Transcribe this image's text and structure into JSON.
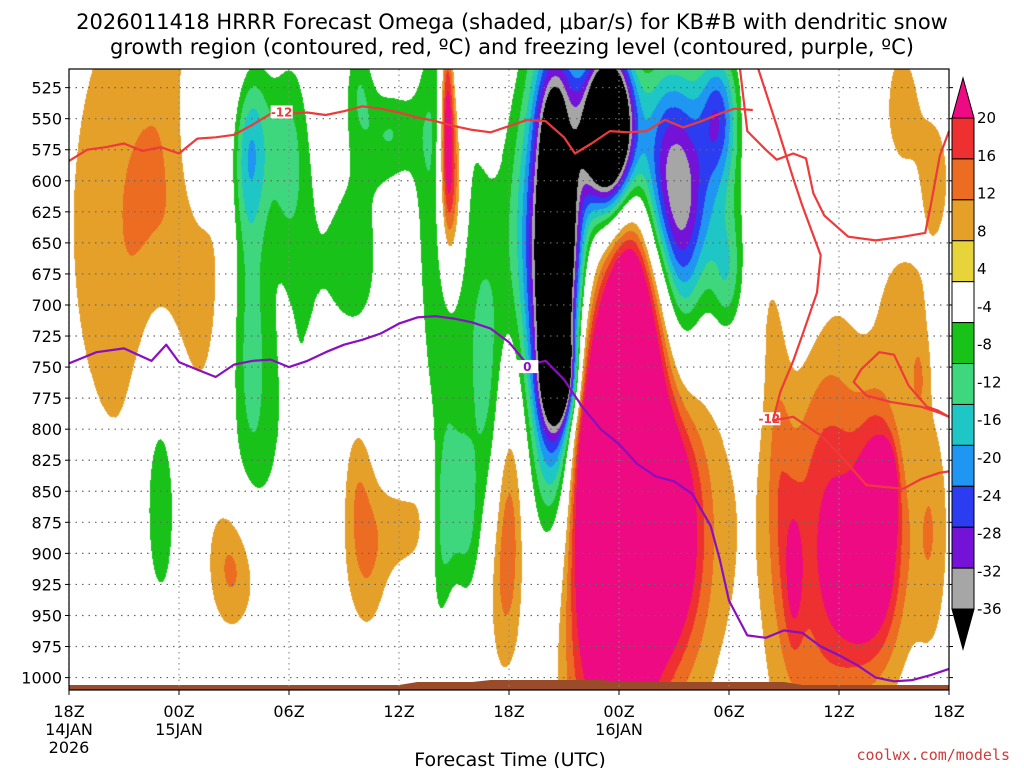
{
  "chart_data": {
    "type": "heatmap",
    "title_line1": "2026011418 HRRR Forecast Omega (shaded, μbar/s) for KB#B with dendritic snow",
    "title_line2": "growth region (contoured, red, ºC) and freezing level (contoured, purple, ºC)",
    "xlabel": "Forecast Time (UTC)",
    "credit": "coolwx.com/models",
    "x_range_hours": [
      0,
      48
    ],
    "y_range_mb": [
      510,
      1010
    ],
    "x_ticks": [
      {
        "hour": 0,
        "l1": "18Z",
        "l2": "14JAN",
        "l3": "2026"
      },
      {
        "hour": 6,
        "l1": "00Z",
        "l2": "15JAN",
        "l3": ""
      },
      {
        "hour": 12,
        "l1": "06Z",
        "l2": "",
        "l3": ""
      },
      {
        "hour": 18,
        "l1": "12Z",
        "l2": "",
        "l3": ""
      },
      {
        "hour": 24,
        "l1": "18Z",
        "l2": "",
        "l3": ""
      },
      {
        "hour": 30,
        "l1": "00Z",
        "l2": "16JAN",
        "l3": ""
      },
      {
        "hour": 36,
        "l1": "06Z",
        "l2": "",
        "l3": ""
      },
      {
        "hour": 42,
        "l1": "12Z",
        "l2": "",
        "l3": ""
      },
      {
        "hour": 48,
        "l1": "18Z",
        "l2": "",
        "l3": ""
      }
    ],
    "y_ticks": [
      "525",
      "550",
      "575",
      "600",
      "625",
      "650",
      "675",
      "700",
      "725",
      "750",
      "775",
      "800",
      "825",
      "850",
      "875",
      "900",
      "925",
      "950",
      "975",
      "1000"
    ],
    "colorbar": {
      "labels": [
        "20",
        "16",
        "12",
        "8",
        "4",
        "-4",
        "-8",
        "-12",
        "-16",
        "-20",
        "-24",
        "-28",
        "-32",
        "-36"
      ],
      "colors": [
        "#ee0a82",
        "#ee3030",
        "#ec6c22",
        "#e5a02a",
        "#e6d43a",
        "#ffffff",
        "#19c219",
        "#3fd77d",
        "#1ec6c6",
        "#1f96f2",
        "#2c3cf0",
        "#7412d8",
        "#a6a6a6",
        "#000000"
      ],
      "bin_edges": [
        -40,
        -36,
        -32,
        -28,
        -24,
        -20,
        -16,
        -12,
        -8,
        -4,
        4,
        8,
        12,
        16,
        20,
        24
      ]
    },
    "omega_blobs": [
      {
        "t": 5.1,
        "p": 635,
        "st": 3.6,
        "sp": 150,
        "a": 10
      },
      {
        "t": 4.9,
        "p": 840,
        "st": 0.9,
        "sp": 90,
        "a": -12
      },
      {
        "t": 9.6,
        "p": 580,
        "st": 0.7,
        "sp": 50,
        "a": -11
      },
      {
        "t": 10.2,
        "p": 560,
        "st": 0.8,
        "sp": 55,
        "a": -11
      },
      {
        "t": 7.2,
        "p": 560,
        "st": 0.9,
        "sp": 60,
        "a": -11
      },
      {
        "t": 8.0,
        "p": 740,
        "st": 1.6,
        "sp": 240,
        "a": 10
      },
      {
        "t": 8.1,
        "p": 810,
        "st": 2.0,
        "sp": 200,
        "a": -12
      },
      {
        "t": 9.7,
        "p": 700,
        "st": 0.9,
        "sp": 80,
        "a": -9
      },
      {
        "t": 10.0,
        "p": 800,
        "st": 1.0,
        "sp": 120,
        "a": -7
      },
      {
        "t": 9.8,
        "p": 930,
        "st": 1.3,
        "sp": 45,
        "a": 6
      },
      {
        "t": 8.9,
        "p": 905,
        "st": 1.0,
        "sp": 40,
        "a": 9
      },
      {
        "t": 11.9,
        "p": 580,
        "st": 0.7,
        "sp": 55,
        "a": -9
      },
      {
        "t": 12.6,
        "p": 760,
        "st": 1.1,
        "sp": 280,
        "a": -7
      },
      {
        "t": 13.0,
        "p": 930,
        "st": 0.9,
        "sp": 50,
        "a": 9
      },
      {
        "t": 15.6,
        "p": 660,
        "st": 1.5,
        "sp": 75,
        "a": -10
      },
      {
        "t": 17.6,
        "p": 560,
        "st": 1.1,
        "sp": 30,
        "a": -10
      },
      {
        "t": 18.4,
        "p": 880,
        "st": 1.3,
        "sp": 30,
        "a": 6
      },
      {
        "t": 15.7,
        "p": 835,
        "st": 0.6,
        "sp": 45,
        "a": 6
      },
      {
        "t": 16.2,
        "p": 905,
        "st": 0.8,
        "sp": 45,
        "a": 7
      },
      {
        "t": 15.8,
        "p": 520,
        "st": 0.6,
        "sp": 35,
        "a": -9
      },
      {
        "t": 20.2,
        "p": 775,
        "st": 1.0,
        "sp": 200,
        "a": -10
      },
      {
        "t": 19.5,
        "p": 860,
        "st": 0.6,
        "sp": 60,
        "a": 7
      },
      {
        "t": 20.9,
        "p": 880,
        "st": 0.9,
        "sp": 45,
        "a": -14
      },
      {
        "t": 20.1,
        "p": 560,
        "st": 0.9,
        "sp": 90,
        "a": -8
      },
      {
        "t": 20.8,
        "p": 600,
        "st": 0.5,
        "sp": 60,
        "a": 24
      },
      {
        "t": 21.0,
        "p": 900,
        "st": 0.5,
        "sp": 60,
        "a": 8
      },
      {
        "t": 20.6,
        "p": 540,
        "st": 0.25,
        "sp": 55,
        "a": 18
      },
      {
        "t": 22.0,
        "p": 710,
        "st": 1.0,
        "sp": 170,
        "a": -9
      },
      {
        "t": 23.0,
        "p": 780,
        "st": 0.6,
        "sp": 90,
        "a": -8
      },
      {
        "t": 24.0,
        "p": 840,
        "st": 0.7,
        "sp": 80,
        "a": 10
      },
      {
        "t": 23.5,
        "p": 920,
        "st": 0.8,
        "sp": 60,
        "a": 7
      },
      {
        "t": 24.6,
        "p": 660,
        "st": 1.0,
        "sp": 110,
        "a": -9
      },
      {
        "t": 26.2,
        "p": 690,
        "st": 1.5,
        "sp": 240,
        "a": -11
      },
      {
        "t": 26.6,
        "p": 675,
        "st": 0.9,
        "sp": 115,
        "a": -58
      },
      {
        "t": 26.7,
        "p": 755,
        "st": 0.6,
        "sp": 25,
        "a": -28
      },
      {
        "t": 26.4,
        "p": 555,
        "st": 0.6,
        "sp": 30,
        "a": -8
      },
      {
        "t": 27.1,
        "p": 575,
        "st": 0.3,
        "sp": 25,
        "a": 6
      },
      {
        "t": 28.0,
        "p": 860,
        "st": 1.6,
        "sp": 210,
        "a": 12
      },
      {
        "t": 29.2,
        "p": 880,
        "st": 1.3,
        "sp": 90,
        "a": 17
      },
      {
        "t": 28.3,
        "p": 810,
        "st": 0.9,
        "sp": 55,
        "a": 9
      },
      {
        "t": 30.8,
        "p": 815,
        "st": 1.4,
        "sp": 150,
        "a": 22
      },
      {
        "t": 30.6,
        "p": 700,
        "st": 0.9,
        "sp": 80,
        "a": 16
      },
      {
        "t": 31.1,
        "p": 895,
        "st": 0.6,
        "sp": 80,
        "a": 10
      },
      {
        "t": 32.5,
        "p": 880,
        "st": 1.2,
        "sp": 60,
        "a": 18
      },
      {
        "t": 31.0,
        "p": 745,
        "st": 4.8,
        "sp": 210,
        "a": 6
      },
      {
        "t": 32.9,
        "p": 905,
        "st": 1.8,
        "sp": 80,
        "a": 7
      },
      {
        "t": 29.4,
        "p": 555,
        "st": 1.0,
        "sp": 45,
        "a": -70
      },
      {
        "t": 29.7,
        "p": 620,
        "st": 2.7,
        "sp": 60,
        "a": -11
      },
      {
        "t": 30.8,
        "p": 920,
        "st": 0.35,
        "sp": 60,
        "a": -16
      },
      {
        "t": 32.3,
        "p": 570,
        "st": 1.0,
        "sp": 60,
        "a": -12
      },
      {
        "t": 33.4,
        "p": 610,
        "st": 1.3,
        "sp": 60,
        "a": -14
      },
      {
        "t": 34.0,
        "p": 590,
        "st": 2.3,
        "sp": 100,
        "a": -9
      },
      {
        "t": 35.4,
        "p": 545,
        "st": 0.7,
        "sp": 35,
        "a": -16
      },
      {
        "t": 33.4,
        "p": 680,
        "st": 0.7,
        "sp": 70,
        "a": -8
      },
      {
        "t": 35.9,
        "p": 680,
        "st": 0.6,
        "sp": 35,
        "a": -9
      },
      {
        "t": 37.5,
        "p": 570,
        "st": 0.7,
        "sp": 60,
        "a": 6
      },
      {
        "t": 38.3,
        "p": 685,
        "st": 0.7,
        "sp": 50,
        "a": 6
      },
      {
        "t": 38.7,
        "p": 845,
        "st": 0.5,
        "sp": 80,
        "a": 6
      },
      {
        "t": 39.8,
        "p": 845,
        "st": 1.6,
        "sp": 200,
        "a": 5
      },
      {
        "t": 39.5,
        "p": 920,
        "st": 0.4,
        "sp": 45,
        "a": 9
      },
      {
        "t": 39.8,
        "p": 620,
        "st": 1.4,
        "sp": 120,
        "a": -9
      },
      {
        "t": 41.2,
        "p": 860,
        "st": 1.3,
        "sp": 150,
        "a": 7
      },
      {
        "t": 43.0,
        "p": 880,
        "st": 1.8,
        "sp": 80,
        "a": 9
      },
      {
        "t": 44.2,
        "p": 860,
        "st": 0.8,
        "sp": 55,
        "a": 15
      },
      {
        "t": 44.6,
        "p": 850,
        "st": 0.3,
        "sp": 20,
        "a": 22
      },
      {
        "t": 43.2,
        "p": 930,
        "st": 1.2,
        "sp": 45,
        "a": 7
      },
      {
        "t": 47.0,
        "p": 880,
        "st": 0.7,
        "sp": 70,
        "a": 7
      },
      {
        "t": 45.4,
        "p": 540,
        "st": 1.0,
        "sp": 55,
        "a": 5
      },
      {
        "t": 47.3,
        "p": 600,
        "st": 0.7,
        "sp": 45,
        "a": 5
      },
      {
        "t": 45.5,
        "p": 700,
        "st": 1.2,
        "sp": 40,
        "a": 5
      },
      {
        "t": 46.3,
        "p": 760,
        "st": 0.4,
        "sp": 25,
        "a": 6
      },
      {
        "t": 43.8,
        "p": 930,
        "st": 1.5,
        "sp": 70,
        "a": 5
      },
      {
        "t": 35.5,
        "p": 610,
        "st": 3.0,
        "sp": 90,
        "a": -6
      }
    ],
    "contours": [
      {
        "name": "dgz-minus12-upper",
        "color": "#ee3a3a",
        "label": "-12",
        "label_at": [
          11.6,
          545
        ],
        "points": [
          [
            0,
            584
          ],
          [
            1,
            575
          ],
          [
            2,
            573
          ],
          [
            3,
            570
          ],
          [
            4,
            576
          ],
          [
            5,
            573
          ],
          [
            6,
            578
          ],
          [
            7,
            566
          ],
          [
            8,
            565
          ],
          [
            9,
            563
          ],
          [
            10,
            555
          ],
          [
            11,
            546
          ],
          [
            12,
            546
          ],
          [
            13,
            545
          ],
          [
            14,
            547
          ],
          [
            15,
            544
          ],
          [
            16,
            540
          ],
          [
            17,
            542
          ],
          [
            18,
            545
          ],
          [
            19,
            549
          ],
          [
            20,
            552
          ],
          [
            21,
            556
          ],
          [
            22,
            559
          ],
          [
            23,
            561
          ],
          [
            24,
            556
          ],
          [
            25,
            551
          ],
          [
            26,
            552
          ],
          [
            27,
            565
          ],
          [
            27.6,
            578
          ],
          [
            28.5,
            570
          ],
          [
            29.5,
            560
          ],
          [
            30.5,
            561
          ],
          [
            31.5,
            560
          ],
          [
            32.5,
            551
          ],
          [
            33.5,
            557
          ],
          [
            34.5,
            552
          ],
          [
            35.5,
            546
          ],
          [
            36.3,
            542
          ],
          [
            37.3,
            543
          ]
        ]
      },
      {
        "name": "dgz-minus12-lower",
        "color": "#ee3a3a",
        "label": "-12",
        "label_at": [
          38.2,
          792
        ],
        "points": [
          [
            36.6,
            510
          ],
          [
            37.0,
            560
          ],
          [
            38.0,
            575
          ],
          [
            38.6,
            583
          ],
          [
            39.5,
            578
          ],
          [
            40.2,
            582
          ],
          [
            40.6,
            610
          ],
          [
            41.2,
            628
          ],
          [
            42.5,
            645
          ],
          [
            44.0,
            648
          ],
          [
            45.5,
            645
          ],
          [
            46.7,
            642
          ],
          [
            47.0,
            620
          ],
          [
            47.5,
            580
          ],
          [
            48,
            560
          ]
        ]
      },
      {
        "name": "dgz-minus12-mid",
        "color": "#ee3a3a",
        "label": "",
        "label_at": null,
        "points": [
          [
            37.6,
            510
          ],
          [
            38.7,
            560
          ],
          [
            39.5,
            598
          ],
          [
            40.0,
            620
          ],
          [
            40.5,
            640
          ],
          [
            41.0,
            660
          ],
          [
            40.8,
            690
          ],
          [
            40.1,
            720
          ],
          [
            39.5,
            745
          ],
          [
            38.8,
            770
          ],
          [
            38.4,
            793
          ],
          [
            39.5,
            790
          ],
          [
            41.0,
            805
          ],
          [
            42.0,
            820
          ],
          [
            43.5,
            845
          ],
          [
            45.5,
            848
          ],
          [
            46.5,
            840
          ],
          [
            47.5,
            835
          ],
          [
            48,
            834
          ]
        ]
      },
      {
        "name": "dgz-minus12-loop",
        "color": "#ee3a3a",
        "label": "",
        "label_at": null,
        "points": [
          [
            48,
            790
          ],
          [
            47.4,
            785
          ],
          [
            46.8,
            782
          ],
          [
            45.8,
            765
          ],
          [
            45.0,
            740
          ],
          [
            44.2,
            738
          ],
          [
            43.2,
            752
          ],
          [
            42.8,
            762
          ],
          [
            43.5,
            773
          ],
          [
            44.8,
            778
          ],
          [
            46.5,
            782
          ],
          [
            47.5,
            787
          ],
          [
            48,
            790
          ]
        ]
      },
      {
        "name": "freezing-level-0C",
        "color": "#8a0fc0",
        "label": "0",
        "label_at": [
          25.0,
          750
        ],
        "points": [
          [
            0,
            747
          ],
          [
            1.5,
            738
          ],
          [
            3,
            735
          ],
          [
            4.5,
            745
          ],
          [
            5.3,
            732
          ],
          [
            6,
            746
          ],
          [
            7,
            752
          ],
          [
            8,
            758
          ],
          [
            9,
            748
          ],
          [
            10,
            745
          ],
          [
            11,
            744
          ],
          [
            12,
            750
          ],
          [
            13,
            745
          ],
          [
            14,
            738
          ],
          [
            15,
            732
          ],
          [
            16,
            728
          ],
          [
            17,
            723
          ],
          [
            18,
            715
          ],
          [
            19,
            710
          ],
          [
            20,
            709
          ],
          [
            21,
            711
          ],
          [
            22,
            714
          ],
          [
            23,
            719
          ],
          [
            24,
            730
          ],
          [
            25,
            748
          ],
          [
            26,
            745
          ],
          [
            27,
            760
          ],
          [
            28,
            782
          ],
          [
            29,
            800
          ],
          [
            30,
            812
          ],
          [
            31,
            828
          ],
          [
            32,
            838
          ],
          [
            33,
            842
          ],
          [
            34,
            852
          ],
          [
            35,
            878
          ],
          [
            35.5,
            905
          ],
          [
            36,
            938
          ],
          [
            37,
            966
          ],
          [
            38,
            968
          ],
          [
            39,
            962
          ],
          [
            40,
            964
          ],
          [
            41,
            975
          ],
          [
            42,
            982
          ],
          [
            43,
            990
          ],
          [
            44,
            1000
          ],
          [
            45,
            1003
          ],
          [
            46,
            1002
          ],
          [
            47,
            998
          ],
          [
            48,
            993
          ]
        ]
      }
    ]
  }
}
